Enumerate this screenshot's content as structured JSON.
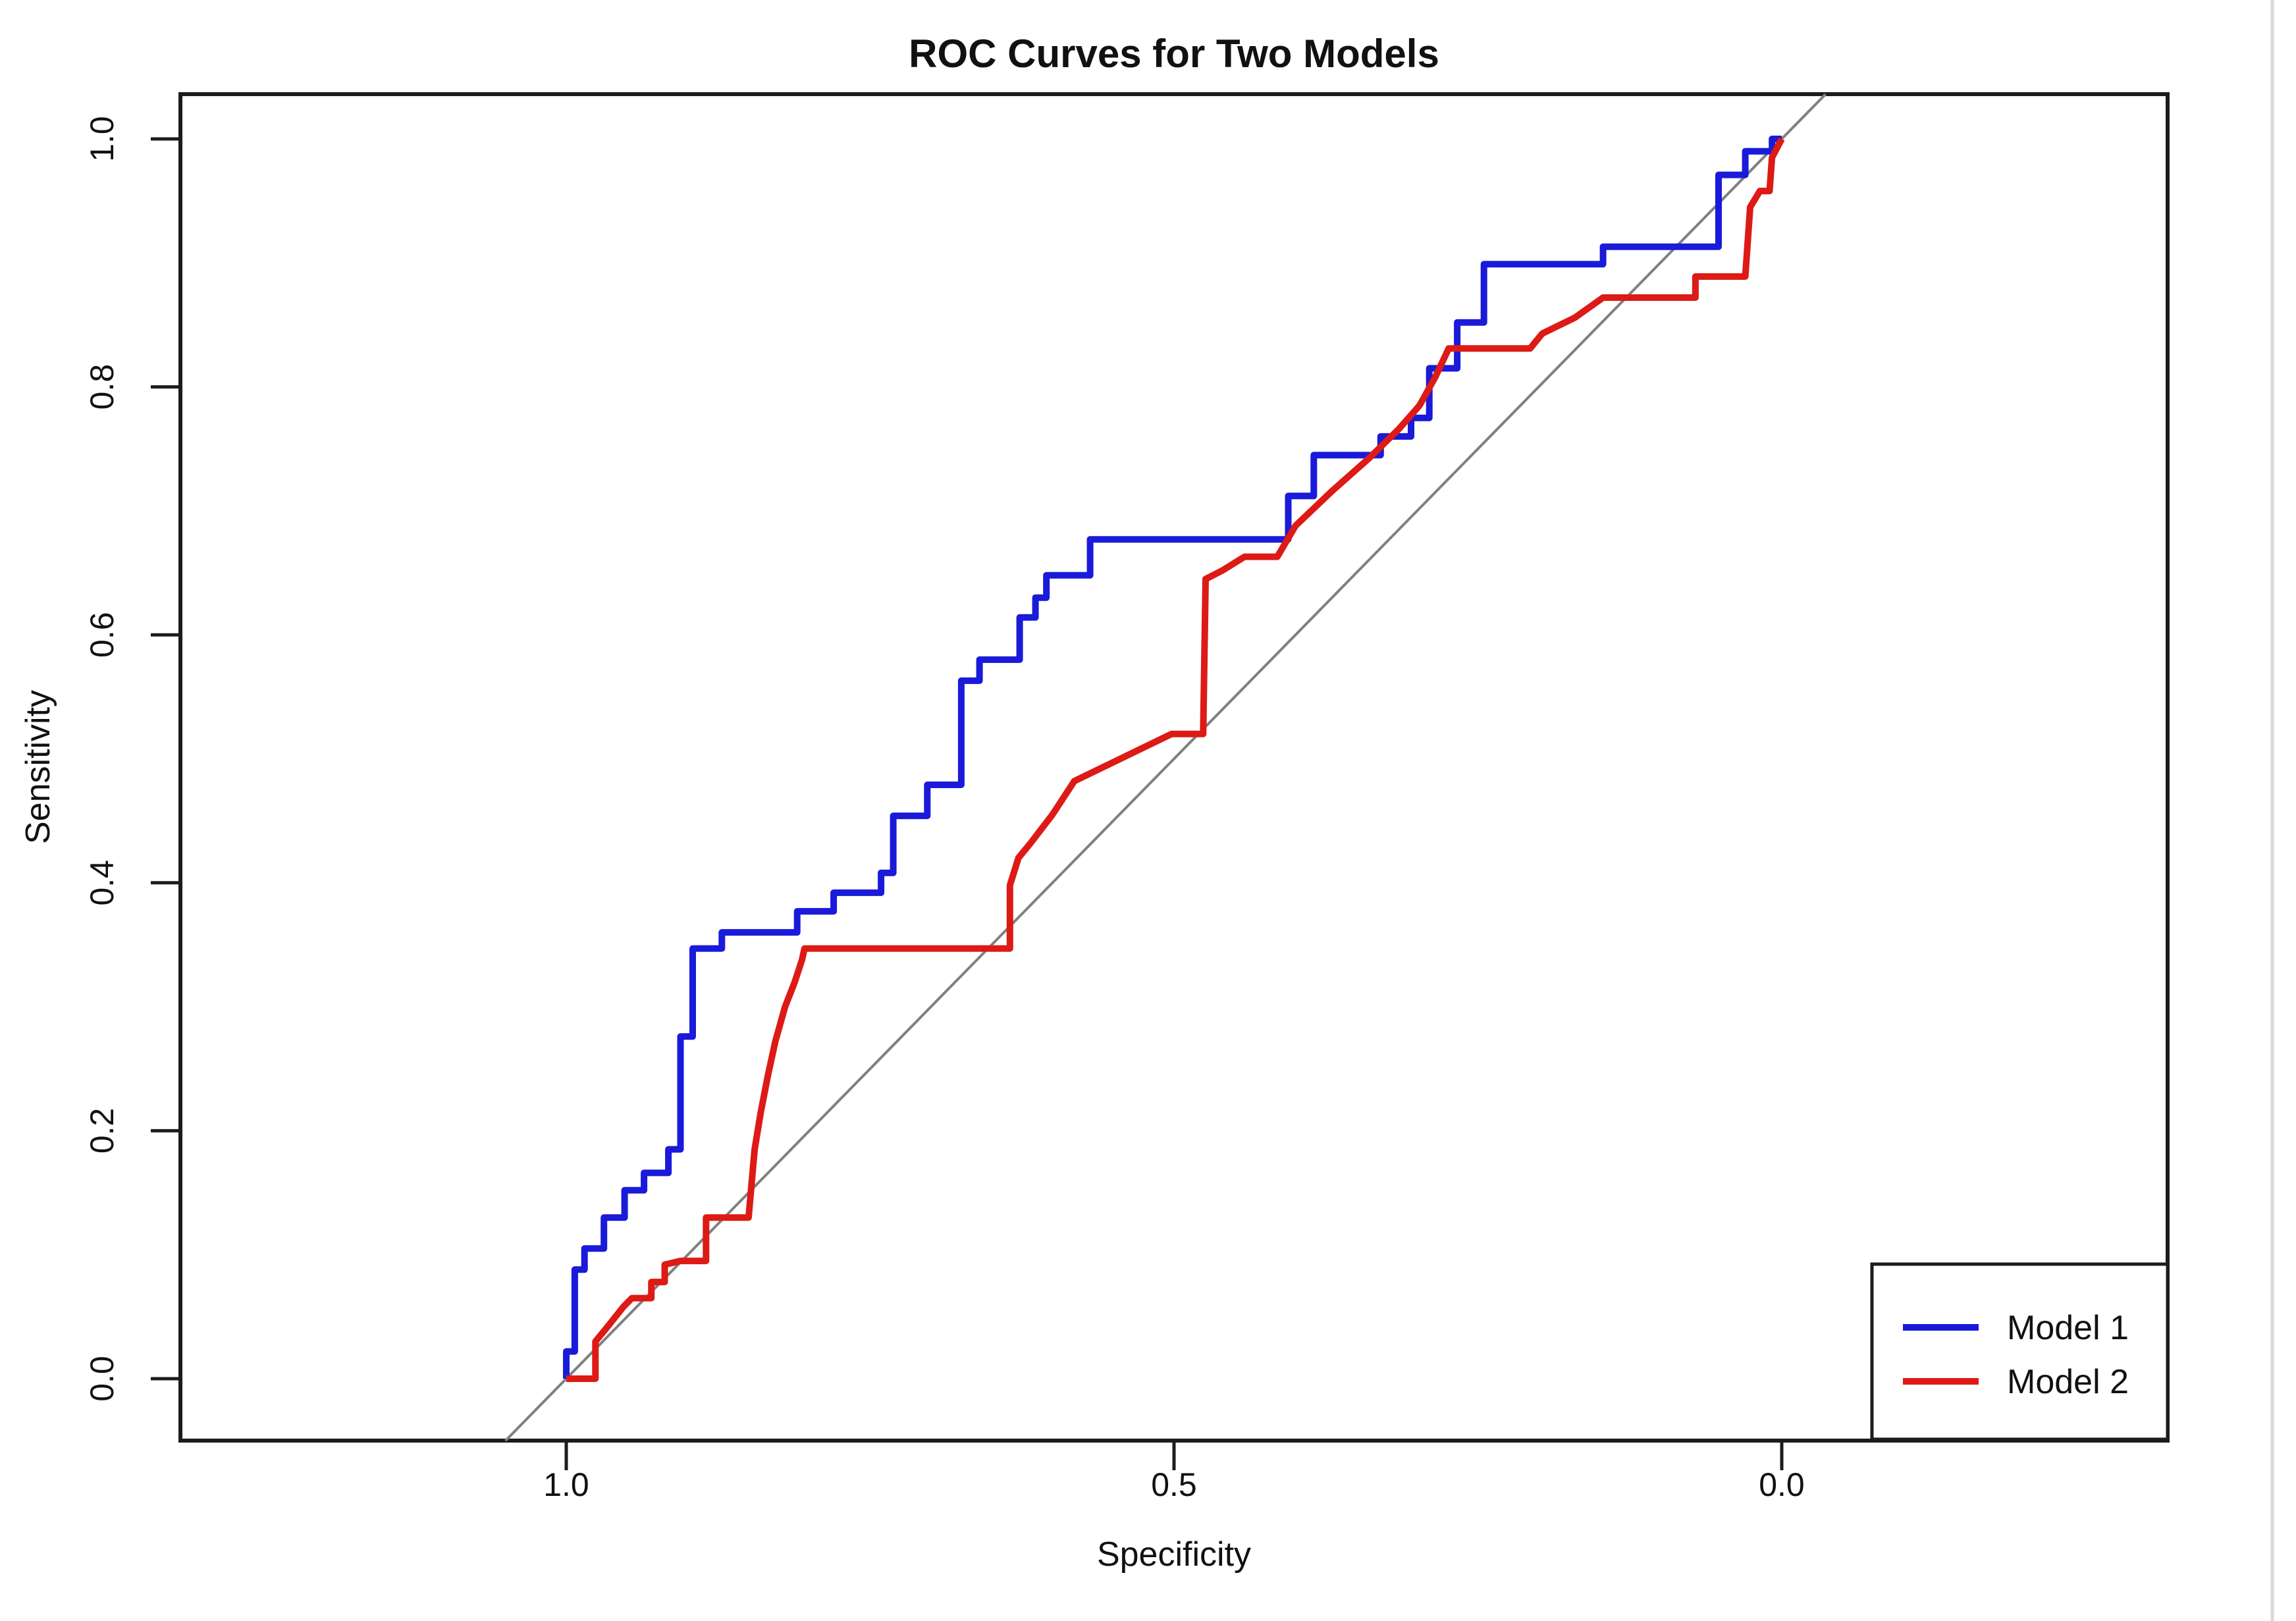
{
  "title": "ROC Curves for Two Models",
  "axes": {
    "x": {
      "label": "Specificity",
      "direction": "reversed",
      "tick_labels": [
        "1.0",
        "0.5",
        "0.0"
      ],
      "tick_values": [
        1.0,
        0.5,
        0.0
      ]
    },
    "y": {
      "label": "Sensitivity",
      "tick_labels": [
        "0.0",
        "0.2",
        "0.4",
        "0.6",
        "0.8",
        "1.0"
      ],
      "tick_values": [
        0.0,
        0.2,
        0.4,
        0.6,
        0.8,
        1.0
      ]
    }
  },
  "legend": {
    "position": "bottomright",
    "items": [
      {
        "label": "Model 1",
        "color": "#1a1ad9"
      },
      {
        "label": "Model 2",
        "color": "#dd1a15"
      }
    ]
  },
  "colors": {
    "model1": "#1a1ad9",
    "model2": "#dd1a15",
    "reference": "#808080",
    "frame": "#1c1c1c",
    "background": "#ffffff",
    "page_edge": "#d9d9d9"
  },
  "chart_data": {
    "type": "line",
    "subtype": "roc-step-curves",
    "title": "ROC Curves for Two Models",
    "xlabel": "Specificity",
    "ylabel": "Sensitivity",
    "xlim": [
      1.0,
      0.0
    ],
    "ylim": [
      0.0,
      1.0
    ],
    "grid": false,
    "legend_position": "bottomright",
    "reference_line": {
      "name": "chance-diagonal",
      "from": [
        1.0,
        0.0
      ],
      "to": [
        0.0,
        1.0
      ],
      "color": "#808080"
    },
    "series": [
      {
        "name": "Model 1",
        "color": "#1a1ad9",
        "points": [
          [
            1.0,
            0.0
          ],
          [
            1.0,
            0.022
          ],
          [
            0.993,
            0.022
          ],
          [
            0.993,
            0.088
          ],
          [
            0.985,
            0.088
          ],
          [
            0.985,
            0.105
          ],
          [
            0.969,
            0.105
          ],
          [
            0.969,
            0.13
          ],
          [
            0.952,
            0.13
          ],
          [
            0.952,
            0.152
          ],
          [
            0.936,
            0.152
          ],
          [
            0.936,
            0.166
          ],
          [
            0.916,
            0.166
          ],
          [
            0.916,
            0.185
          ],
          [
            0.906,
            0.185
          ],
          [
            0.906,
            0.276
          ],
          [
            0.896,
            0.276
          ],
          [
            0.896,
            0.347
          ],
          [
            0.872,
            0.347
          ],
          [
            0.872,
            0.36
          ],
          [
            0.81,
            0.36
          ],
          [
            0.81,
            0.377
          ],
          [
            0.78,
            0.377
          ],
          [
            0.78,
            0.392
          ],
          [
            0.741,
            0.392
          ],
          [
            0.741,
            0.408
          ],
          [
            0.731,
            0.408
          ],
          [
            0.731,
            0.454
          ],
          [
            0.703,
            0.454
          ],
          [
            0.703,
            0.479
          ],
          [
            0.675,
            0.479
          ],
          [
            0.675,
            0.563
          ],
          [
            0.66,
            0.563
          ],
          [
            0.66,
            0.58
          ],
          [
            0.627,
            0.58
          ],
          [
            0.627,
            0.614
          ],
          [
            0.614,
            0.614
          ],
          [
            0.614,
            0.63
          ],
          [
            0.605,
            0.63
          ],
          [
            0.605,
            0.648
          ],
          [
            0.569,
            0.648
          ],
          [
            0.569,
            0.677
          ],
          [
            0.406,
            0.677
          ],
          [
            0.406,
            0.712
          ],
          [
            0.385,
            0.712
          ],
          [
            0.385,
            0.745
          ],
          [
            0.33,
            0.745
          ],
          [
            0.33,
            0.76
          ],
          [
            0.305,
            0.76
          ],
          [
            0.305,
            0.775
          ],
          [
            0.29,
            0.775
          ],
          [
            0.29,
            0.815
          ],
          [
            0.267,
            0.815
          ],
          [
            0.267,
            0.852
          ],
          [
            0.245,
            0.852
          ],
          [
            0.245,
            0.899
          ],
          [
            0.147,
            0.899
          ],
          [
            0.147,
            0.913
          ],
          [
            0.052,
            0.913
          ],
          [
            0.052,
            0.971
          ],
          [
            0.03,
            0.971
          ],
          [
            0.03,
            0.99
          ],
          [
            0.008,
            0.99
          ],
          [
            0.008,
            1.0
          ],
          [
            0.0,
            1.0
          ]
        ]
      },
      {
        "name": "Model 2",
        "color": "#dd1a15",
        "points": [
          [
            1.0,
            0.0
          ],
          [
            0.976,
            0.0
          ],
          [
            0.976,
            0.03
          ],
          [
            0.966,
            0.042
          ],
          [
            0.953,
            0.058
          ],
          [
            0.946,
            0.065
          ],
          [
            0.93,
            0.065
          ],
          [
            0.93,
            0.078
          ],
          [
            0.919,
            0.078
          ],
          [
            0.919,
            0.092
          ],
          [
            0.906,
            0.095
          ],
          [
            0.885,
            0.095
          ],
          [
            0.885,
            0.13
          ],
          [
            0.85,
            0.13
          ],
          [
            0.845,
            0.185
          ],
          [
            0.84,
            0.215
          ],
          [
            0.834,
            0.245
          ],
          [
            0.828,
            0.272
          ],
          [
            0.82,
            0.3
          ],
          [
            0.812,
            0.32
          ],
          [
            0.806,
            0.338
          ],
          [
            0.804,
            0.347
          ],
          [
            0.635,
            0.347
          ],
          [
            0.635,
            0.398
          ],
          [
            0.628,
            0.42
          ],
          [
            0.618,
            0.432
          ],
          [
            0.6,
            0.455
          ],
          [
            0.582,
            0.482
          ],
          [
            0.54,
            0.502
          ],
          [
            0.502,
            0.52
          ],
          [
            0.476,
            0.52
          ],
          [
            0.474,
            0.645
          ],
          [
            0.46,
            0.652
          ],
          [
            0.442,
            0.663
          ],
          [
            0.415,
            0.663
          ],
          [
            0.4,
            0.688
          ],
          [
            0.37,
            0.716
          ],
          [
            0.34,
            0.742
          ],
          [
            0.315,
            0.766
          ],
          [
            0.298,
            0.785
          ],
          [
            0.285,
            0.808
          ],
          [
            0.274,
            0.831
          ],
          [
            0.207,
            0.831
          ],
          [
            0.197,
            0.843
          ],
          [
            0.17,
            0.856
          ],
          [
            0.147,
            0.872
          ],
          [
            0.071,
            0.872
          ],
          [
            0.071,
            0.889
          ],
          [
            0.03,
            0.889
          ],
          [
            0.026,
            0.945
          ],
          [
            0.018,
            0.958
          ],
          [
            0.01,
            0.958
          ],
          [
            0.008,
            0.985
          ],
          [
            0.0,
            1.0
          ]
        ]
      }
    ]
  }
}
